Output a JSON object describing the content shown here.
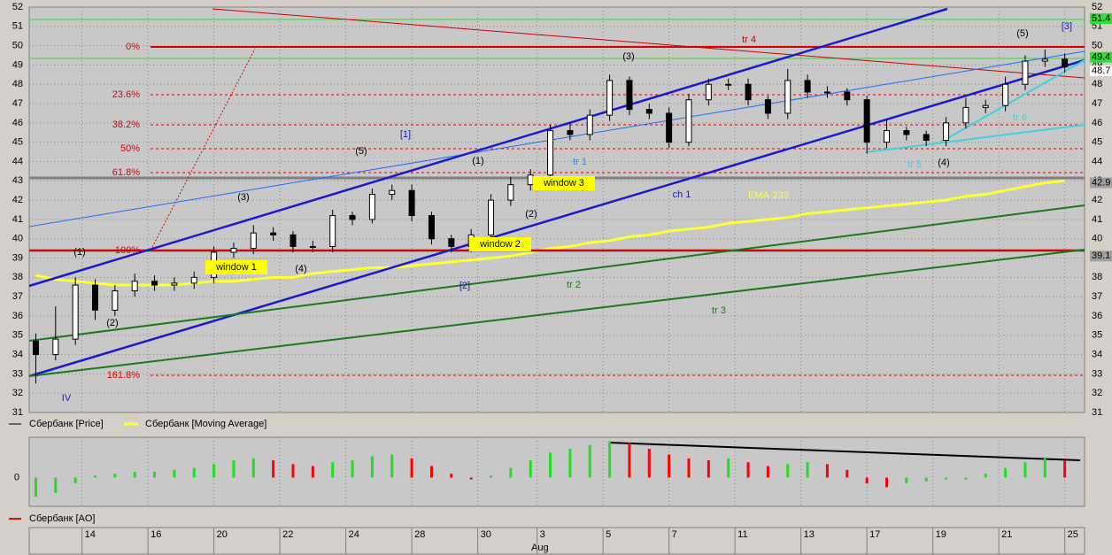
{
  "chart_data": {
    "type": "candlestick",
    "x": [
      1,
      4,
      7,
      10,
      13,
      16,
      19,
      22,
      25,
      28,
      31,
      34,
      37,
      40,
      43,
      46,
      49,
      52,
      55,
      58,
      61,
      64,
      67,
      70,
      73,
      76,
      79,
      82,
      85,
      88,
      91,
      94,
      97,
      100,
      103,
      106,
      109,
      112,
      115,
      118,
      121,
      124,
      127,
      130,
      133,
      136,
      139,
      142,
      145,
      148,
      151,
      154,
      157
    ],
    "open": [
      34.7,
      34.0,
      34.8,
      37.6,
      36.3,
      37.3,
      37.8,
      37.6,
      37.7,
      38.0,
      39.3,
      39.5,
      40.3,
      40.2,
      39.6,
      39.6,
      41.2,
      41.0,
      42.3,
      42.5,
      41.2,
      40.0,
      39.6,
      40.2,
      42.0,
      42.8,
      43.3,
      45.6,
      45.4,
      46.4,
      48.2,
      46.7,
      46.5,
      45.0,
      47.2,
      48.0,
      48.0,
      47.2,
      46.5,
      48.2,
      47.6,
      47.6,
      47.2,
      45.0,
      45.6,
      45.4,
      45.1,
      46.0,
      46.8,
      46.9,
      48.0,
      49.2,
      49.3
    ],
    "high": [
      35.1,
      36.5,
      38.0,
      37.9,
      37.6,
      38.2,
      38.1,
      38.0,
      38.3,
      39.6,
      39.8,
      40.7,
      40.6,
      40.4,
      39.9,
      41.5,
      41.4,
      42.6,
      42.8,
      42.8,
      41.4,
      40.2,
      40.5,
      42.3,
      43.2,
      43.6,
      45.9,
      46.0,
      46.7,
      48.5,
      48.4,
      47.0,
      46.8,
      47.5,
      48.3,
      48.3,
      48.3,
      47.4,
      48.8,
      48.5,
      47.9,
      47.8,
      47.4,
      46.2,
      45.8,
      45.6,
      46.3,
      47.3,
      47.2,
      48.4,
      49.5,
      49.8,
      49.6
    ],
    "low": [
      32.5,
      33.7,
      34.5,
      35.8,
      36.0,
      37.0,
      37.3,
      37.3,
      37.4,
      37.7,
      39.0,
      39.2,
      39.9,
      39.3,
      39.3,
      39.3,
      40.7,
      40.8,
      42.0,
      40.9,
      39.7,
      39.3,
      39.3,
      39.9,
      41.7,
      42.5,
      43.0,
      45.1,
      45.1,
      46.1,
      46.4,
      46.2,
      44.7,
      44.8,
      46.9,
      47.7,
      46.9,
      46.2,
      46.2,
      47.3,
      47.3,
      46.9,
      44.4,
      44.7,
      45.1,
      44.8,
      44.8,
      45.7,
      46.5,
      46.6,
      47.7,
      48.9,
      48.6
    ],
    "close": [
      34.0,
      34.8,
      37.6,
      36.3,
      37.3,
      37.8,
      37.6,
      37.7,
      38.0,
      39.3,
      39.5,
      40.3,
      40.2,
      39.6,
      39.6,
      41.2,
      41.0,
      42.3,
      42.5,
      41.2,
      40.0,
      39.6,
      40.2,
      42.0,
      42.8,
      43.3,
      45.6,
      45.4,
      46.4,
      48.2,
      46.7,
      46.5,
      45.0,
      47.2,
      48.0,
      48.0,
      47.2,
      46.5,
      48.2,
      47.6,
      47.6,
      47.2,
      45.0,
      45.6,
      45.4,
      45.1,
      46.0,
      46.8,
      46.9,
      48.0,
      49.2,
      49.3,
      48.9
    ],
    "up_color": "#ffffff",
    "down_color": "#000000",
    "series": [
      {
        "name": "Сбербанк [Price]",
        "color": "#000000"
      },
      {
        "name": "Сбербанк [Moving Average]",
        "color": "#ffff33",
        "values": [
          38.1,
          37.9,
          37.8,
          37.7,
          37.6,
          37.6,
          37.6,
          37.6,
          37.7,
          37.8,
          37.8,
          37.9,
          38.0,
          38.0,
          38.2,
          38.3,
          38.4,
          38.5,
          38.5,
          38.6,
          38.7,
          38.8,
          38.9,
          39.0,
          39.1,
          39.3,
          39.5,
          39.6,
          39.8,
          39.9,
          40.1,
          40.2,
          40.4,
          40.5,
          40.6,
          40.8,
          40.9,
          41.0,
          41.1,
          41.3,
          41.4,
          41.5,
          41.6,
          41.7,
          41.8,
          41.9,
          42.0,
          42.2,
          42.3,
          42.5,
          42.7,
          42.9,
          43.0
        ]
      }
    ],
    "xlim": [
      0,
      160
    ],
    "xticks": [
      {
        "value": 8,
        "label": "14"
      },
      {
        "value": 18,
        "label": "16"
      },
      {
        "value": 28,
        "label": "20"
      },
      {
        "value": 38,
        "label": "22"
      },
      {
        "value": 48,
        "label": "24"
      },
      {
        "value": 58,
        "label": "28"
      },
      {
        "value": 68,
        "label": "30"
      },
      {
        "value": 77,
        "label": "3"
      },
      {
        "value": 87,
        "label": "5"
      },
      {
        "value": 97,
        "label": "7"
      },
      {
        "value": 107,
        "label": "11"
      },
      {
        "value": 117,
        "label": "13"
      },
      {
        "value": 127,
        "label": "17"
      },
      {
        "value": 137,
        "label": "19"
      },
      {
        "value": 147,
        "label": "21"
      },
      {
        "value": 157,
        "label": "25"
      }
    ],
    "x_sublabel": "Aug",
    "ylim": [
      31,
      52
    ],
    "yticks": [
      31,
      32,
      33,
      34,
      35,
      36,
      37,
      38,
      39,
      40,
      41,
      42,
      43,
      44,
      45,
      46,
      47,
      48,
      49,
      50,
      51,
      52
    ],
    "grid": true,
    "price_markers": [
      {
        "value": 51.4,
        "color": "#33dd33"
      },
      {
        "value": 49.4,
        "color": "#33dd33"
      },
      {
        "value": 48.7,
        "color": "#ffffff"
      },
      {
        "value": 42.9,
        "color": "#a0a0a0"
      },
      {
        "value": 39.1,
        "color": "#a0a0a0"
      }
    ],
    "fib_labels": [
      "0%",
      "23.6%",
      "38.2%",
      "50%",
      "61.8%",
      "100%",
      "161.8%"
    ],
    "annotations": [
      {
        "text": "IV",
        "color": "#1a1acc"
      },
      {
        "text": "(1)",
        "color": "#000000"
      },
      {
        "text": "(2)",
        "color": "#000000"
      },
      {
        "text": "(3)",
        "color": "#000000"
      },
      {
        "text": "(4)",
        "color": "#000000"
      },
      {
        "text": "(5)",
        "color": "#000000"
      },
      {
        "text": "[1]",
        "color": "#1a1acc"
      },
      {
        "text": "(1)",
        "color": "#000000"
      },
      {
        "text": "(2)",
        "color": "#000000"
      },
      {
        "text": "[2]",
        "color": "#1a1acc"
      },
      {
        "text": "(3)",
        "color": "#000000"
      },
      {
        "text": "(4)",
        "color": "#000000"
      },
      {
        "text": "(5)",
        "color": "#000000"
      },
      {
        "text": "[3]",
        "color": "#1a1acc"
      },
      {
        "text": "tr 1",
        "color": "#1e8cff"
      },
      {
        "text": "ch 1",
        "color": "#1a1acc"
      },
      {
        "text": "tr 2",
        "color": "#1a7a1a"
      },
      {
        "text": "tr 3",
        "color": "#1a7a1a"
      },
      {
        "text": "tr 4",
        "color": "#cc0000"
      },
      {
        "text": "tr 5",
        "color": "#40d0e0"
      },
      {
        "text": "tr 6",
        "color": "#40d0e0"
      },
      {
        "text": "EMA-233",
        "color": "#ffff33"
      },
      {
        "text": "window 1",
        "color": "#000000"
      },
      {
        "text": "window 2",
        "color": "#000000"
      },
      {
        "text": "window 3",
        "color": "#000000"
      }
    ],
    "ao": {
      "name": "Сбербанк [AO]",
      "color": "#ff0000",
      "up_color": "#22dd22",
      "down_color": "#ff0000",
      "values": [
        -1.0,
        -0.8,
        -0.3,
        0.1,
        0.2,
        0.3,
        0.3,
        0.4,
        0.5,
        0.7,
        0.9,
        1.0,
        0.9,
        0.7,
        0.6,
        0.8,
        0.9,
        1.1,
        1.2,
        1.0,
        0.6,
        0.2,
        -0.1,
        0.1,
        0.5,
        0.9,
        1.3,
        1.5,
        1.7,
        1.9,
        1.8,
        1.5,
        1.2,
        1.0,
        0.9,
        1.0,
        0.8,
        0.6,
        0.7,
        0.8,
        0.7,
        0.4,
        -0.3,
        -0.5,
        -0.3,
        -0.2,
        -0.1,
        -0.1,
        0.2,
        0.5,
        0.8,
        1.0,
        0.9
      ],
      "ylim": [
        -1.5,
        2.1
      ],
      "yticks": [
        0
      ]
    }
  }
}
